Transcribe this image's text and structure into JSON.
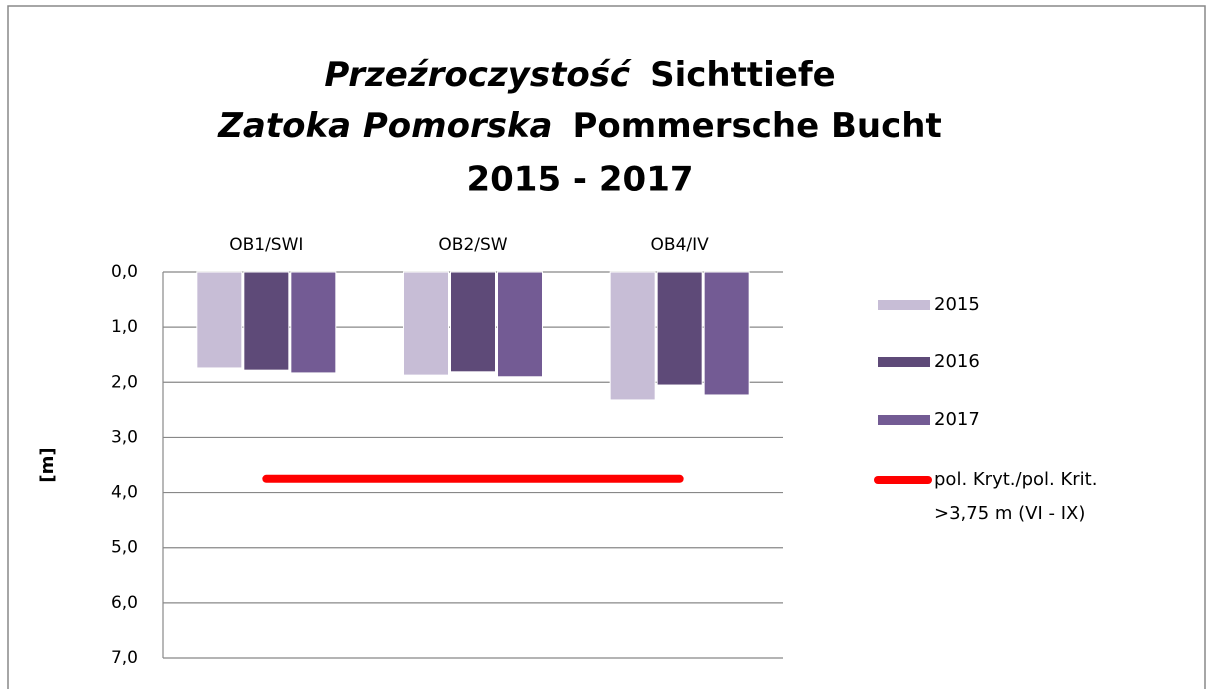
{
  "chart_data": {
    "type": "bar",
    "title": [
      {
        "pl": "Przeźroczystość",
        "de": "Sichttiefe"
      },
      {
        "pl": "Zatoka Pomorska",
        "de": "Pommersche Bucht"
      }
    ],
    "subtitle": "2015 - 2017",
    "y_label": "[m]",
    "categories": [
      "OB1/SWI",
      "OB2/SW",
      "OB4/IV"
    ],
    "series": [
      {
        "name": "2015",
        "color": "#c7bdd6",
        "values": [
          1.74,
          1.87,
          2.32
        ]
      },
      {
        "name": "2016",
        "color": "#5e4a78",
        "values": [
          1.78,
          1.81,
          2.05
        ]
      },
      {
        "name": "2017",
        "color": "#735b94",
        "values": [
          1.83,
          1.9,
          2.23
        ]
      },
      {
        "name": [
          "pol. Kryt./pol. Krit.",
          ">3,75 m (VI - IX)"
        ],
        "type": "line",
        "color": "#ff0000",
        "values": [
          3.75,
          3.75,
          3.75
        ]
      }
    ],
    "ylim": [
      0,
      7
    ],
    "y_inverted": true,
    "yticks": [
      {
        "value": 0,
        "label": "0,0"
      },
      {
        "value": 1,
        "label": "1,0"
      },
      {
        "value": 2,
        "label": "2,0"
      },
      {
        "value": 3,
        "label": "3,0"
      },
      {
        "value": 4,
        "label": "4,0"
      },
      {
        "value": 5,
        "label": "5,0"
      },
      {
        "value": 6,
        "label": "6,0"
      },
      {
        "value": 7,
        "label": "7,0"
      }
    ],
    "grid": true,
    "legend": "right"
  }
}
